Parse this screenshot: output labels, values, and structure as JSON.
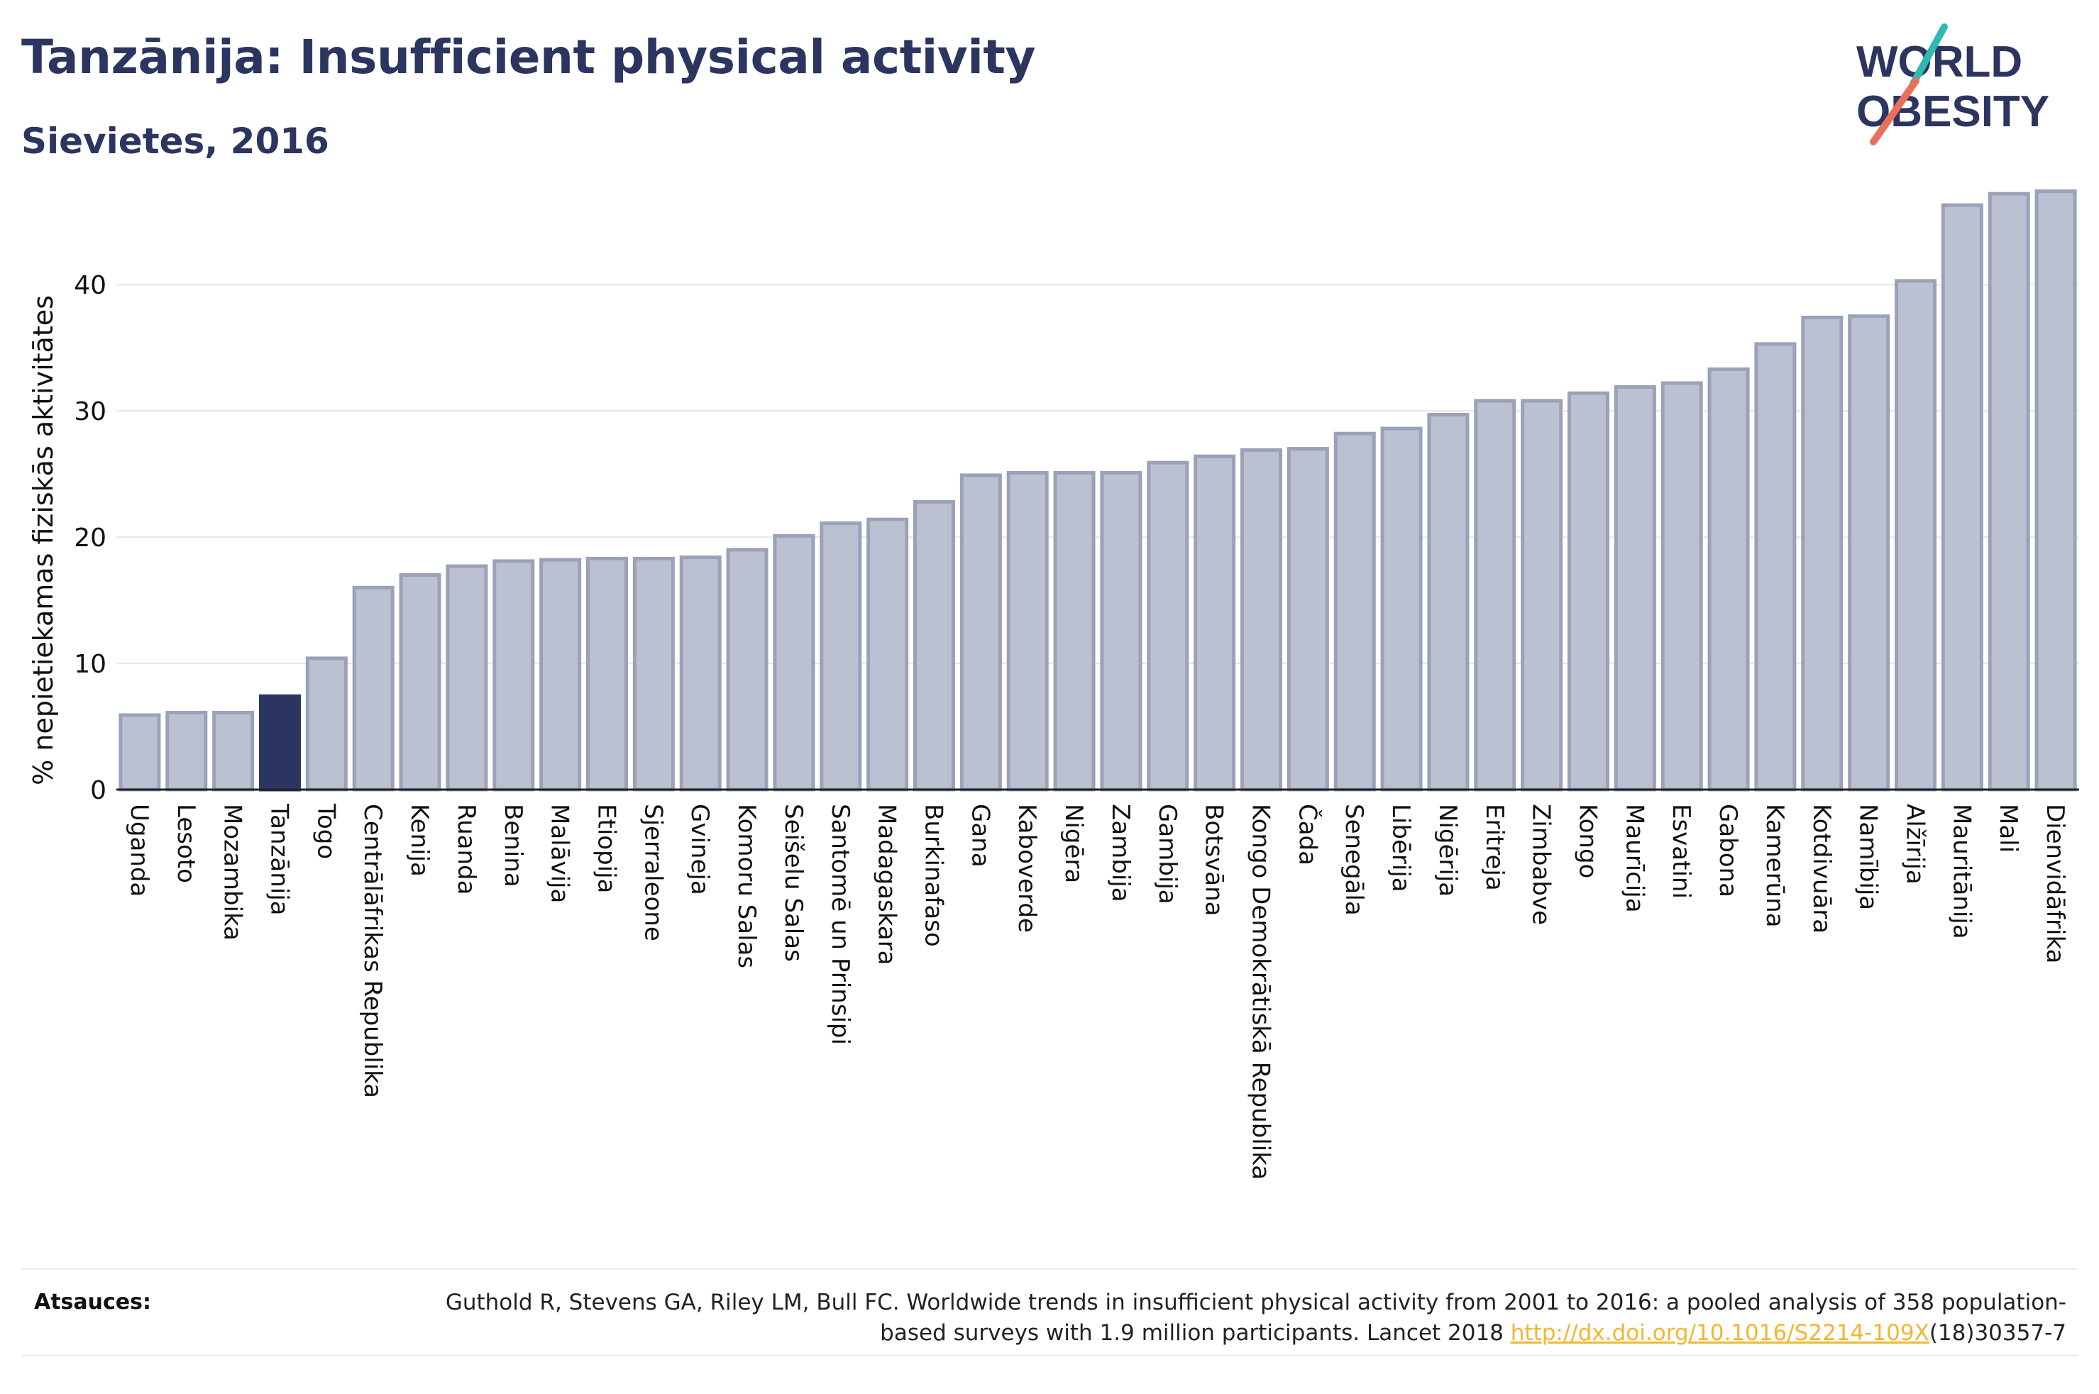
{
  "title": "Tanzānija: Insufficient physical activity",
  "subtitle": "Sievietes, 2016",
  "logo": {
    "line1": "WORLD",
    "line2": "OBESITY"
  },
  "chart_data": {
    "type": "bar",
    "title": "Tanzānija: Insufficient physical activity",
    "subtitle": "Sievietes, 2016",
    "xlabel": "",
    "ylabel": "% nepietiekamas fiziskās aktivitātes",
    "ylim": [
      0,
      48.5
    ],
    "yticks": [
      0,
      10,
      20,
      30,
      40
    ],
    "grid": true,
    "highlight": "Tanzānija",
    "categories": [
      "Uganda",
      "Lesoto",
      "Mozambika",
      "Tanzānija",
      "Togo",
      "Centrālāfrikas Republika",
      "Kenija",
      "Ruanda",
      "Benina",
      "Malāvija",
      "Etiopija",
      "Sjerraleone",
      "Gvineja",
      "Komoru Salas",
      "Seišelu Salas",
      "Santomē un Prinsipi",
      "Madagaskara",
      "Burkinafaso",
      "Gana",
      "Kaboverde",
      "Nigēra",
      "Zambija",
      "Gambija",
      "Botsvāna",
      "Kongo Demokrātiskā Republika",
      "Čada",
      "Senegāla",
      "Libērija",
      "Nigērija",
      "Eritreja",
      "Zimbabve",
      "Kongo",
      "Maurīcija",
      "Esvatini",
      "Gabona",
      "Kamerūna",
      "Kotdivuāra",
      "Namībija",
      "Alžīrija",
      "Mauritānija",
      "Mali",
      "Dienvidāfrika"
    ],
    "values": [
      5.9,
      6.1,
      6.1,
      7.4,
      10.4,
      16.0,
      17.0,
      17.7,
      18.1,
      18.2,
      18.3,
      18.3,
      18.4,
      19.0,
      20.1,
      21.1,
      21.4,
      22.8,
      24.9,
      25.1,
      25.1,
      25.1,
      25.9,
      26.4,
      26.9,
      27.0,
      28.2,
      28.6,
      29.7,
      30.8,
      30.8,
      31.4,
      31.9,
      32.2,
      33.3,
      35.3,
      37.4,
      37.5,
      40.3,
      46.3,
      47.2,
      47.4
    ],
    "colors": {
      "bar": "#bcc1d1",
      "bar_border": "#9aa1b9",
      "highlight": "#2b3560",
      "grid": "#e6e6e6",
      "axis": "#222222"
    }
  },
  "source": {
    "label": "Atsauces:",
    "text_before": "Guthold R, Stevens GA, Riley LM, Bull FC. Worldwide trends in insufficient physical activity from 2001 to 2016: a pooled analysis of 358 population-based surveys with 1.9 million participants. Lancet 2018 ",
    "link": "http://dx.doi.org/10.1016/S2214-109X",
    "text_after": "(18)30357-7"
  }
}
